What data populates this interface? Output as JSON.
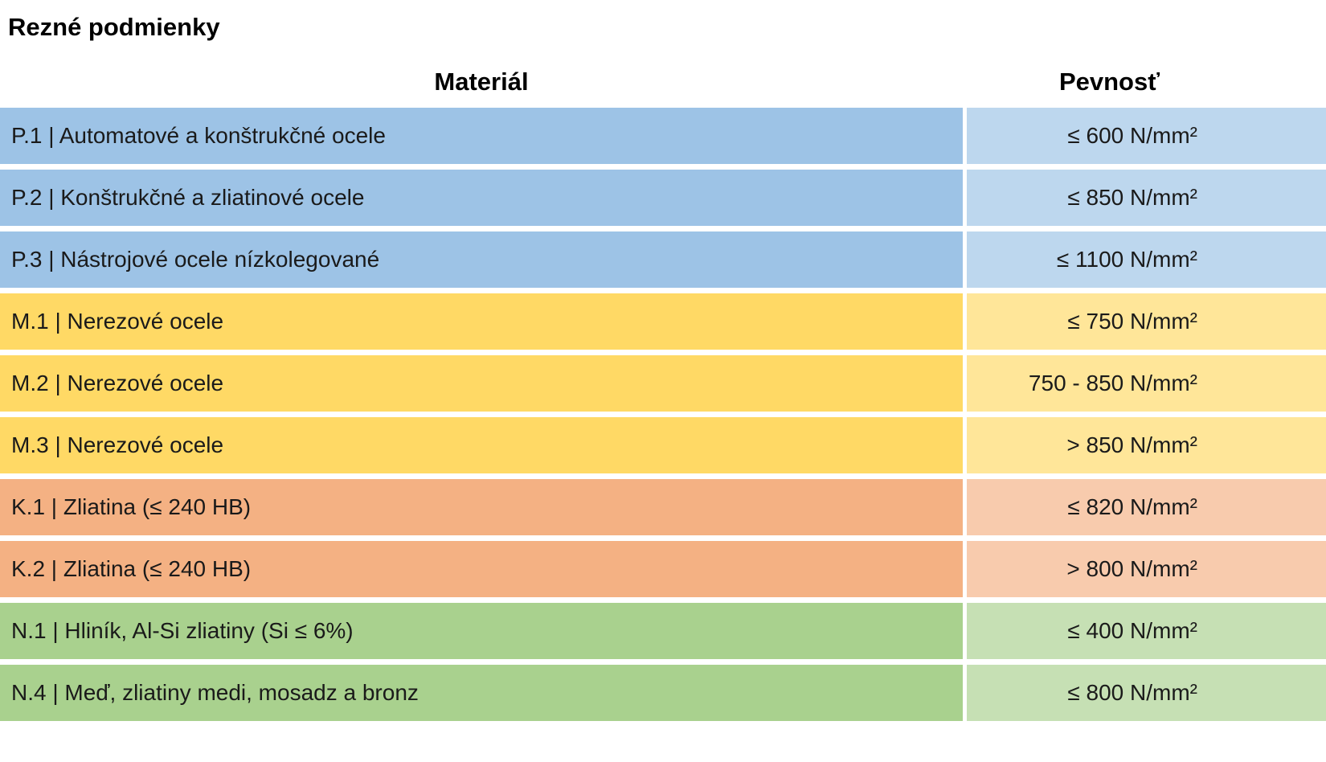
{
  "title": "Rezné podmienky",
  "table": {
    "headers": {
      "material": "Materiál",
      "strength": "Pevnosť"
    },
    "rows": [
      {
        "material": "P.1 | Automatové a konštrukčné ocele",
        "strength": "≤ 600 N/mm²",
        "color": "blue"
      },
      {
        "material": "P.2 | Konštrukčné a zliatinové ocele",
        "strength": "≤ 850 N/mm²",
        "color": "blue"
      },
      {
        "material": "P.3 | Nástrojové ocele nízkolegované",
        "strength": "≤ 1100 N/mm²",
        "color": "blue"
      },
      {
        "material": "M.1 | Nerezové ocele",
        "strength": "≤ 750 N/mm²",
        "color": "yellow"
      },
      {
        "material": "M.2 | Nerezové ocele",
        "strength": "750 - 850 N/mm²",
        "color": "yellow"
      },
      {
        "material": "M.3 | Nerezové ocele",
        "strength": "> 850 N/mm²",
        "color": "yellow"
      },
      {
        "material": "K.1 | Zliatina (≤ 240 HB)",
        "strength": "≤ 820 N/mm²",
        "color": "orange"
      },
      {
        "material": "K.2 | Zliatina (≤ 240 HB)",
        "strength": "> 800 N/mm²",
        "color": "orange"
      },
      {
        "material": "N.1 | Hliník, Al-Si zliatiny (Si ≤ 6%)",
        "strength": "≤ 400 N/mm²",
        "color": "green"
      },
      {
        "material": "N.4 | Meď, zliatiny medi, mosadz a bronz",
        "strength": "≤ 800 N/mm²",
        "color": "green"
      }
    ]
  },
  "colors": {
    "blue": {
      "left": "#9DC3E6",
      "right": "#BDD7EE"
    },
    "yellow": {
      "left": "#FFD965",
      "right": "#FFE699"
    },
    "orange": {
      "left": "#F4B183",
      "right": "#F8CBAD"
    },
    "green": {
      "left": "#A9D18E",
      "right": "#C6E0B4"
    }
  }
}
